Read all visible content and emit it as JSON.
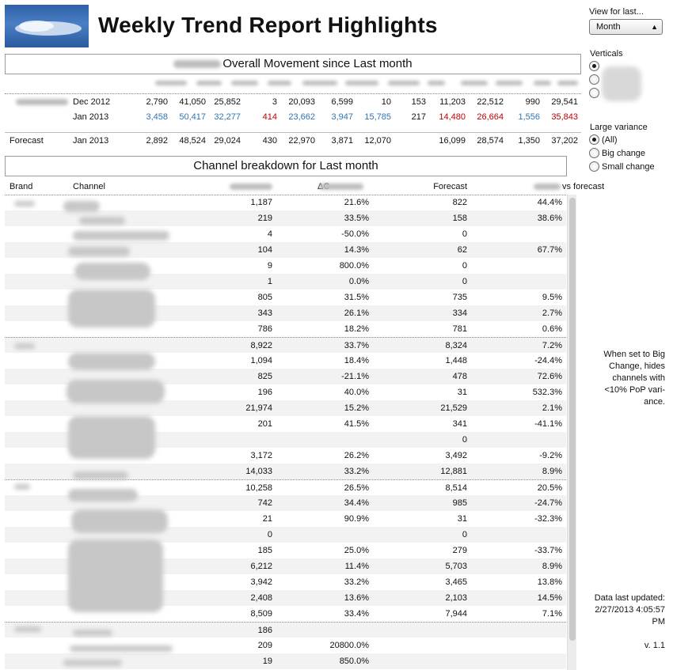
{
  "header": {
    "title": "Weekly Trend Report Highlights"
  },
  "overall": {
    "banner": "Overall Movement since Last month",
    "rows": [
      {
        "period": "Dec 2012",
        "values": [
          "2,790",
          "41,050",
          "25,852",
          "3",
          "20,093",
          "6,599",
          "10",
          "153",
          "11,203",
          "22,512",
          "990",
          "29,541"
        ]
      },
      {
        "period": "Jan 2013",
        "values": [
          "3,458",
          "50,417",
          "32,277",
          "414",
          "23,662",
          "3,947",
          "15,785",
          "217",
          "14,480",
          "26,664",
          "1,556",
          "35,843"
        ]
      }
    ],
    "forecast": {
      "label": "Forecast",
      "period": "Jan 2013",
      "values": [
        "2,892",
        "48,524",
        "29,024",
        "430",
        "22,970",
        "3,871",
        "12,070",
        "",
        "16,099",
        "28,574",
        "1,350",
        "37,202"
      ]
    }
  },
  "breakdown": {
    "banner": "Channel breakdown for Last month",
    "headers": {
      "brand": "Brand",
      "channel": "Channel",
      "delta": "ΔC",
      "forecast": "Forecast",
      "vs_forecast": "vs forecast"
    },
    "rows": [
      [
        "1,187",
        "21.6%",
        "822",
        "44.4%"
      ],
      [
        "219",
        "33.5%",
        "158",
        "38.6%"
      ],
      [
        "4",
        "-50.0%",
        "0",
        ""
      ],
      [
        "104",
        "14.3%",
        "62",
        "67.7%"
      ],
      [
        "9",
        "800.0%",
        "0",
        ""
      ],
      [
        "1",
        "0.0%",
        "0",
        ""
      ],
      [
        "805",
        "31.5%",
        "735",
        "9.5%"
      ],
      [
        "343",
        "26.1%",
        "334",
        "2.7%"
      ],
      [
        "786",
        "18.2%",
        "781",
        "0.6%"
      ],
      [
        "8,922",
        "33.7%",
        "8,324",
        "7.2%"
      ],
      [
        "1,094",
        "18.4%",
        "1,448",
        "-24.4%"
      ],
      [
        "825",
        "-21.1%",
        "478",
        "72.6%"
      ],
      [
        "196",
        "40.0%",
        "31",
        "532.3%"
      ],
      [
        "21,974",
        "15.2%",
        "21,529",
        "2.1%"
      ],
      [
        "201",
        "41.5%",
        "341",
        "-41.1%"
      ],
      [
        "",
        "",
        "0",
        ""
      ],
      [
        "3,172",
        "26.2%",
        "3,492",
        "-9.2%"
      ],
      [
        "14,033",
        "33.2%",
        "12,881",
        "8.9%"
      ],
      [
        "10,258",
        "26.5%",
        "8,514",
        "20.5%"
      ],
      [
        "742",
        "34.4%",
        "985",
        "-24.7%"
      ],
      [
        "21",
        "90.9%",
        "31",
        "-32.3%"
      ],
      [
        "0",
        "",
        "0",
        ""
      ],
      [
        "185",
        "25.0%",
        "279",
        "-33.7%"
      ],
      [
        "6,212",
        "11.4%",
        "5,703",
        "8.9%"
      ],
      [
        "3,942",
        "33.2%",
        "3,465",
        "13.8%"
      ],
      [
        "2,408",
        "13.6%",
        "2,103",
        "14.5%"
      ],
      [
        "8,509",
        "33.4%",
        "7,944",
        "7.1%"
      ],
      [
        "186",
        "",
        "",
        ""
      ],
      [
        "209",
        "20800.0%",
        "",
        ""
      ],
      [
        "19",
        "850.0%",
        "",
        ""
      ]
    ]
  },
  "sidebar": {
    "view_label": "View for last...",
    "view_selected": "Month",
    "verticals_label": "Verticals",
    "variance_label": "Large variance",
    "variance_options": [
      "(All)",
      "Big change",
      "Small change"
    ],
    "note": "When set to Big Change, hides channels with <10% PoP vari-ance.",
    "updated_label": "Data last updated:",
    "updated_value": "2/27/2013 4:05:57 PM",
    "version": "v. 1.1"
  }
}
